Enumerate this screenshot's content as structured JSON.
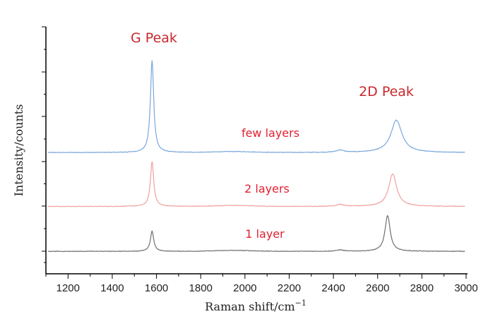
{
  "chart_data": {
    "type": "line",
    "xlabel": "Raman shift/cm",
    "xlabel_exponent": "−1",
    "ylabel": "Intensity/counts",
    "xlim": [
      1100,
      3000
    ],
    "x_ticks": [
      1200,
      1400,
      1600,
      1800,
      2000,
      2200,
      2400,
      2600,
      2800,
      3000
    ],
    "x_tick_labels": [
      "1200",
      "1400",
      "1600",
      "1800",
      "2000",
      "2200",
      "2400",
      "2600",
      "2800",
      "3000"
    ],
    "y_ticks_shown": true,
    "y_tick_labels_shown": false,
    "grid": false,
    "annotations": [
      {
        "text": "G Peak",
        "x": 1580,
        "color": "#c8282d"
      },
      {
        "text": "2D Peak",
        "x": 2680,
        "color": "#c8282d"
      }
    ],
    "series": [
      {
        "name": "few layers",
        "color": "#7aa6dc",
        "label_color": "#e02030",
        "baseline": 2.2,
        "noise": 0.012,
        "peaks": [
          {
            "center": 1580,
            "height": 2.05,
            "width": 9
          },
          {
            "center": 2430,
            "height": 0.05,
            "width": 20
          },
          {
            "center": 2685,
            "height": 0.72,
            "width": 30
          }
        ]
      },
      {
        "name": "2 layers",
        "color": "#f0a0a0",
        "label_color": "#e02030",
        "baseline": 1.0,
        "noise": 0.012,
        "peaks": [
          {
            "center": 1580,
            "height": 1.0,
            "width": 9
          },
          {
            "center": 2430,
            "height": 0.04,
            "width": 20
          },
          {
            "center": 2668,
            "height": 0.72,
            "width": 22
          }
        ]
      },
      {
        "name": "1 layer",
        "color": "#707070",
        "label_color": "#e02030",
        "baseline": 0.0,
        "noise": 0.012,
        "peaks": [
          {
            "center": 1580,
            "height": 0.45,
            "width": 9
          },
          {
            "center": 2430,
            "height": 0.03,
            "width": 20
          },
          {
            "center": 2645,
            "height": 0.8,
            "width": 14
          }
        ]
      }
    ]
  }
}
